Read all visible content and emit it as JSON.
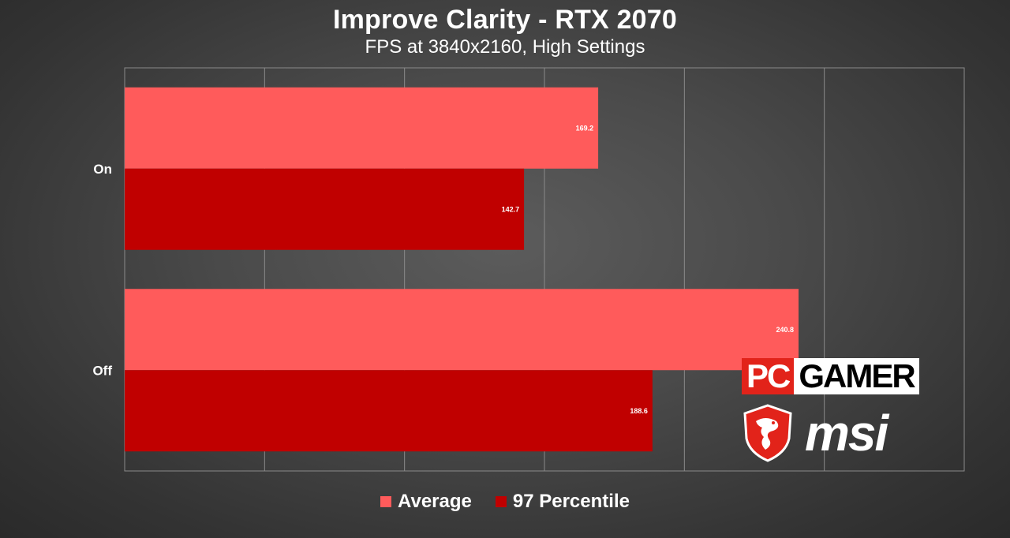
{
  "chart_data": {
    "type": "bar",
    "orientation": "horizontal",
    "title": "Improve Clarity - RTX 2070",
    "subtitle": "FPS at 3840x2160, High Settings",
    "categories": [
      "On",
      "Off"
    ],
    "series": [
      {
        "name": "Average",
        "values": [
          169.2,
          240.8
        ],
        "color": "#ff5b5b"
      },
      {
        "name": "97 Percentile",
        "values": [
          142.7,
          188.6
        ],
        "color": "#c00000"
      }
    ],
    "xlim": [
      0,
      300
    ],
    "grid": true,
    "legend_position": "bottom"
  },
  "logos": {
    "pc": "PC",
    "gamer": "GAMER",
    "msi": "msi"
  }
}
